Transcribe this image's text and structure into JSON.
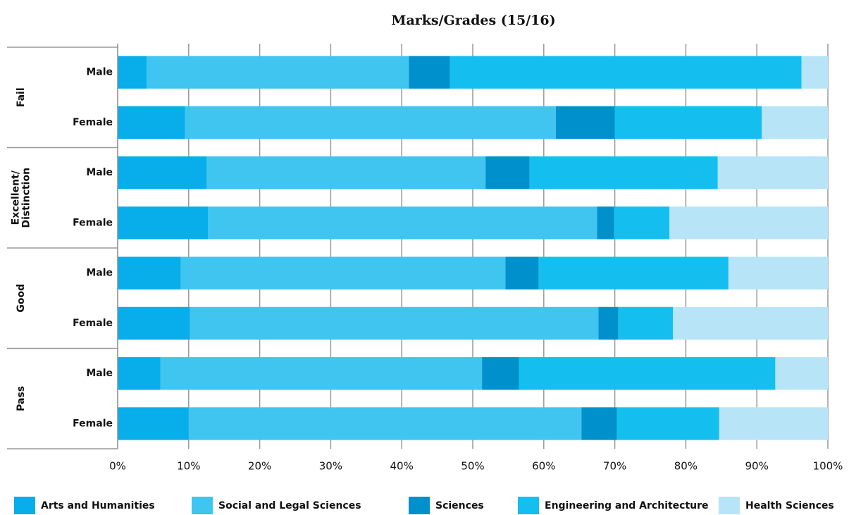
{
  "chart_data": {
    "type": "stacked_barh",
    "title": "Marks/Grades (15/16)",
    "groups": [
      "Fail",
      "Excellent/\nDistinction",
      "Good",
      "Pass"
    ],
    "categories": [
      "Male",
      "Female",
      "Male",
      "Female",
      "Male",
      "Female",
      "Male",
      "Female"
    ],
    "series": [
      {
        "name": "Arts and Humanities",
        "color": "#07aee9",
        "values": [
          4.1,
          9.5,
          12.5,
          12.7,
          8.9,
          10.2,
          6.0,
          10.0
        ]
      },
      {
        "name": "Social and Legal Sciences",
        "color": "#40c4f0",
        "values": [
          36.9,
          52.2,
          39.3,
          54.8,
          45.7,
          57.5,
          45.3,
          55.3
        ]
      },
      {
        "name": "Sciences",
        "color": "#0091cc",
        "values": [
          5.8,
          8.3,
          6.2,
          2.4,
          4.7,
          2.8,
          5.2,
          5.0
        ]
      },
      {
        "name": "Engineering and Architecture",
        "color": "#14bff0",
        "values": [
          49.5,
          20.7,
          26.5,
          7.8,
          26.7,
          7.7,
          36.1,
          14.4
        ]
      },
      {
        "name": "Health Sciences",
        "color": "#b8e4f7",
        "values": [
          3.7,
          9.3,
          15.5,
          22.3,
          14.0,
          21.8,
          7.4,
          15.3
        ]
      }
    ],
    "xlim": [
      0,
      100
    ],
    "xticks": [
      {
        "value": 0,
        "label": "0%"
      },
      {
        "value": 10,
        "label": "10%"
      },
      {
        "value": 20,
        "label": "20%"
      },
      {
        "value": 30,
        "label": "30%"
      },
      {
        "value": 40,
        "label": "40%"
      },
      {
        "value": 50,
        "label": "50%"
      },
      {
        "value": 60,
        "label": "60%"
      },
      {
        "value": 70,
        "label": "70%"
      },
      {
        "value": 80,
        "label": "80%"
      },
      {
        "value": 90,
        "label": "90%"
      },
      {
        "value": 100,
        "label": "100%"
      }
    ],
    "grid": true
  }
}
